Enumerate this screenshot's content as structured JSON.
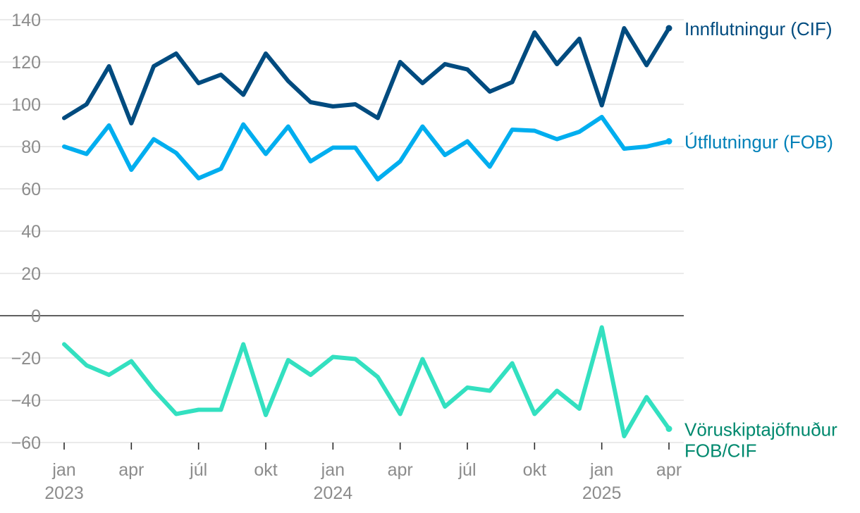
{
  "chart_data": {
    "type": "line",
    "ylim": [
      -60,
      140
    ],
    "yticks": [
      -60,
      -40,
      -20,
      0,
      20,
      40,
      60,
      80,
      100,
      120,
      140
    ],
    "ytick_labels": [
      "−60",
      "−40",
      "−20",
      "0",
      "20",
      "40",
      "60",
      "80",
      "100",
      "120",
      "140"
    ],
    "x": [
      "2023-01",
      "2023-02",
      "2023-03",
      "2023-04",
      "2023-05",
      "2023-06",
      "2023-07",
      "2023-08",
      "2023-09",
      "2023-10",
      "2023-11",
      "2023-12",
      "2024-01",
      "2024-02",
      "2024-03",
      "2024-04",
      "2024-05",
      "2024-06",
      "2024-07",
      "2024-08",
      "2024-09",
      "2024-10",
      "2024-11",
      "2024-12",
      "2025-01",
      "2025-02",
      "2025-03",
      "2025-04"
    ],
    "xticks": [
      {
        "index": 0,
        "month": "jan",
        "year": "2023"
      },
      {
        "index": 3,
        "month": "apr",
        "year": ""
      },
      {
        "index": 6,
        "month": "júl",
        "year": ""
      },
      {
        "index": 9,
        "month": "okt",
        "year": ""
      },
      {
        "index": 12,
        "month": "jan",
        "year": "2024"
      },
      {
        "index": 15,
        "month": "apr",
        "year": ""
      },
      {
        "index": 18,
        "month": "júl",
        "year": ""
      },
      {
        "index": 21,
        "month": "okt",
        "year": ""
      },
      {
        "index": 24,
        "month": "jan",
        "year": "2025"
      },
      {
        "index": 27,
        "month": "apr",
        "year": ""
      }
    ],
    "series": [
      {
        "name": "Innflutningur (CIF)",
        "label_lines": [
          "Innflutningur (CIF)"
        ],
        "color": "#004b7f",
        "label_color": "#004b7f",
        "values": [
          93.5,
          100,
          118,
          91,
          118,
          124,
          110,
          114,
          104.5,
          124,
          111,
          101,
          99,
          100,
          93.5,
          120,
          110,
          119,
          116.5,
          106,
          110.5,
          134,
          119,
          131,
          99.5,
          136,
          118.5,
          136
        ]
      },
      {
        "name": "Útflutningur (FOB)",
        "label_lines": [
          "Útflutningur (FOB)"
        ],
        "color": "#00aeef",
        "label_color": "#0080b8",
        "values": [
          80,
          76.5,
          90,
          69,
          83.5,
          77,
          65,
          69.5,
          90.5,
          76.5,
          89.5,
          73,
          79.5,
          79.5,
          64.5,
          73,
          89.5,
          76,
          82.5,
          70.5,
          88,
          87.5,
          83.5,
          87,
          94,
          79,
          80,
          82.5
        ]
      },
      {
        "name": "Vöruskiptajöfnuður FOB/CIF",
        "label_lines": [
          "Vöruskiptajöfnuður",
          "FOB/CIF"
        ],
        "color": "#33e0c0",
        "label_color": "#00896e",
        "values": [
          -13.5,
          -23.5,
          -28,
          -21.5,
          -35,
          -46.5,
          -44.5,
          -44.5,
          -13.5,
          -47,
          -21,
          -28,
          -19.5,
          -20.5,
          -29,
          -46.5,
          -20.5,
          -43,
          -34,
          -35.5,
          -22.5,
          -46.5,
          -35.5,
          -44,
          -5.5,
          -57,
          -38.5,
          -53.5
        ]
      }
    ],
    "grid": true,
    "zero_line": true
  }
}
